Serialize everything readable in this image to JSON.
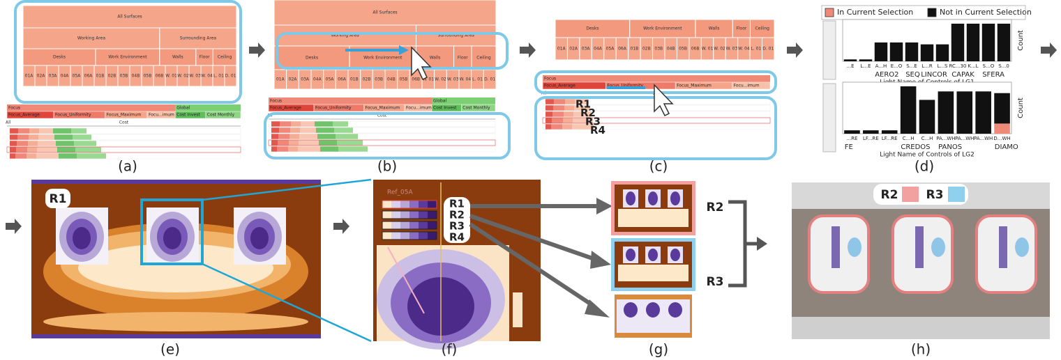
{
  "captions": [
    "(a)",
    "(b)",
    "(c)",
    "(d)",
    "(e)",
    "(f)",
    "(g)",
    "(h)"
  ],
  "hierarchy": {
    "root": "All Surfaces",
    "level1": [
      "Working Area",
      "Surrounding Area"
    ],
    "level2": [
      "Desks",
      "Work Environment",
      "Walls",
      "Floor",
      "Ceiling"
    ],
    "level3": [
      "01A",
      "02A",
      "03A",
      "04A",
      "05A",
      "06A",
      "01B",
      "02B",
      "03B",
      "04B",
      "05B",
      "06B",
      "W. 01",
      "W. 02",
      "W. 03",
      "W. 04",
      "L. 01",
      "D. 01"
    ]
  },
  "criteria": {
    "groups": [
      "Focus",
      "Global"
    ],
    "items": [
      "Focus_Average",
      "Focus_Uniformity",
      "Focus_Maximum",
      "Focu...imum",
      "Cost Invest",
      "Cost Monthly"
    ],
    "sort": "Cost",
    "all": "All"
  },
  "ranks": [
    "R1",
    "R2",
    "R3",
    "R4"
  ],
  "reference": "Ref_05A",
  "chart_data": [
    {
      "type": "bar",
      "x_label": "Light Name of Controls of LG1",
      "y_label": "Count",
      "categories": [
        "...E",
        "L...E",
        "A...H",
        "E...O",
        "S...E",
        "L...R",
        "L...S",
        "RC...30",
        "K...L",
        "S...O",
        "S...0"
      ],
      "groups": [
        null,
        null,
        "AERO2",
        null,
        "SEQ",
        "LINCOR",
        null,
        "CAPAK",
        null,
        "SFERA",
        null
      ],
      "series": [
        {
          "name": "In Current Selection",
          "color": "#f08a78",
          "values": [
            0,
            0,
            0,
            0,
            0,
            0,
            0,
            0,
            0,
            0,
            0
          ]
        },
        {
          "name": "Not in Current Selection",
          "color": "#111111",
          "values": [
            1,
            1,
            10,
            10,
            10,
            9,
            9,
            20,
            20,
            20,
            20
          ]
        }
      ]
    },
    {
      "type": "bar",
      "x_label": "Light Name of Controls of LG2",
      "y_label": "Count",
      "categories": [
        "...RE",
        "LF...RE",
        "LF...RE",
        "C...H",
        "C...H",
        "PA...WH",
        "PA...WH",
        "PA...WH",
        "D...WH"
      ],
      "groups": [
        "FE",
        null,
        null,
        "CREDOS",
        null,
        "PANOS",
        null,
        null,
        "DIAMO"
      ],
      "series": [
        {
          "name": "In Current Selection",
          "color": "#f08a78",
          "values": [
            0,
            0,
            0,
            0,
            0,
            0,
            0,
            0,
            6
          ]
        },
        {
          "name": "Not in Current Selection",
          "color": "#111111",
          "values": [
            2,
            2,
            2,
            28,
            20,
            25,
            25,
            25,
            18
          ]
        }
      ]
    }
  ]
}
